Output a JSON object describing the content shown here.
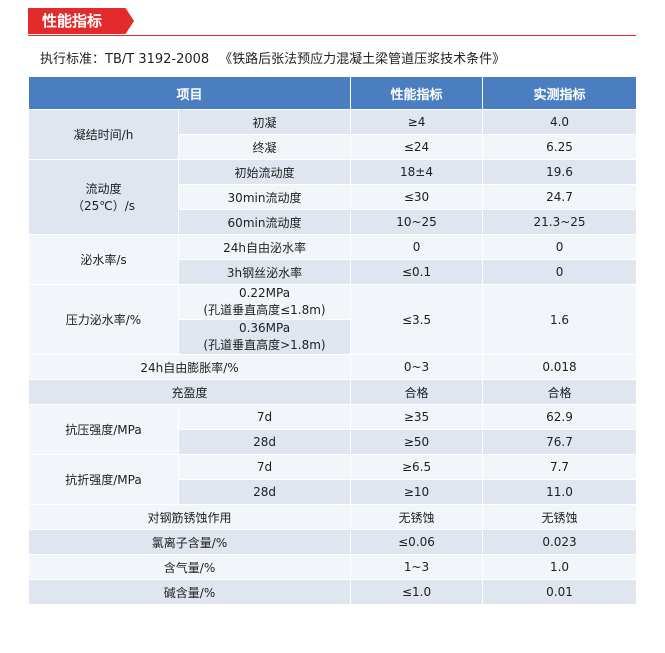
{
  "header": {
    "title": "性能指标"
  },
  "standard": {
    "code": "执行标准：TB/T  3192-2008",
    "name": "《铁路后张法预应力混凝土梁管道压浆技术条件》"
  },
  "table": {
    "headers": [
      "项目",
      "性能指标",
      "实测指标"
    ],
    "setting_time": {
      "label": "凝结时间/h",
      "rows": [
        {
          "item": "初凝",
          "spec": "≥4",
          "measured": "4.0"
        },
        {
          "item": "终凝",
          "spec": "≤24",
          "measured": "6.25"
        }
      ]
    },
    "fluidity": {
      "label_line1": "流动度",
      "label_line2": "（25℃）/s",
      "rows": [
        {
          "item": "初始流动度",
          "spec": "18±4",
          "measured": "19.6"
        },
        {
          "item": "30min流动度",
          "spec": "≤30",
          "measured": "24.7"
        },
        {
          "item": "60min流动度",
          "spec": "10~25",
          "measured": "21.3~25"
        }
      ]
    },
    "bleeding": {
      "label": "泌水率/s",
      "rows": [
        {
          "item": "24h自由泌水率",
          "spec": "0",
          "measured": "0"
        },
        {
          "item": "3h钢丝泌水率",
          "spec": "≤0.1",
          "measured": "0"
        }
      ]
    },
    "pressure_bleeding": {
      "label": "压力泌水率/%",
      "rows": [
        {
          "line1": "0.22MPa",
          "line2": "(孔道垂直高度≤1.8m)"
        },
        {
          "line1": "0.36MPa",
          "line2": "(孔道垂直高度>1.8m)"
        }
      ],
      "spec": "≤3.5",
      "measured": "1.6"
    },
    "expansion": {
      "label": "24h自由膨胀率/%",
      "spec": "0~3",
      "measured": "0.018"
    },
    "fullness": {
      "label": "充盈度",
      "spec": "合格",
      "measured": "合格"
    },
    "compressive": {
      "label": "抗压强度/MPa",
      "rows": [
        {
          "item": "7d",
          "spec": "≥35",
          "measured": "62.9"
        },
        {
          "item": "28d",
          "spec": "≥50",
          "measured": "76.7"
        }
      ]
    },
    "flexural": {
      "label": "抗折强度/MPa",
      "rows": [
        {
          "item": "7d",
          "spec": "≥6.5",
          "measured": "7.7"
        },
        {
          "item": "28d",
          "spec": "≥10",
          "measured": "11.0"
        }
      ]
    },
    "corrosion": {
      "label": "对钢筋锈蚀作用",
      "spec": "无锈蚀",
      "measured": "无锈蚀"
    },
    "chloride": {
      "label": "氯离子含量/%",
      "spec": "≤0.06",
      "measured": "0.023"
    },
    "air": {
      "label": "含气量/%",
      "spec": "1~3",
      "measured": "1.0"
    },
    "alkali": {
      "label": "碱含量/%",
      "spec": "≤1.0",
      "measured": "0.01"
    }
  }
}
